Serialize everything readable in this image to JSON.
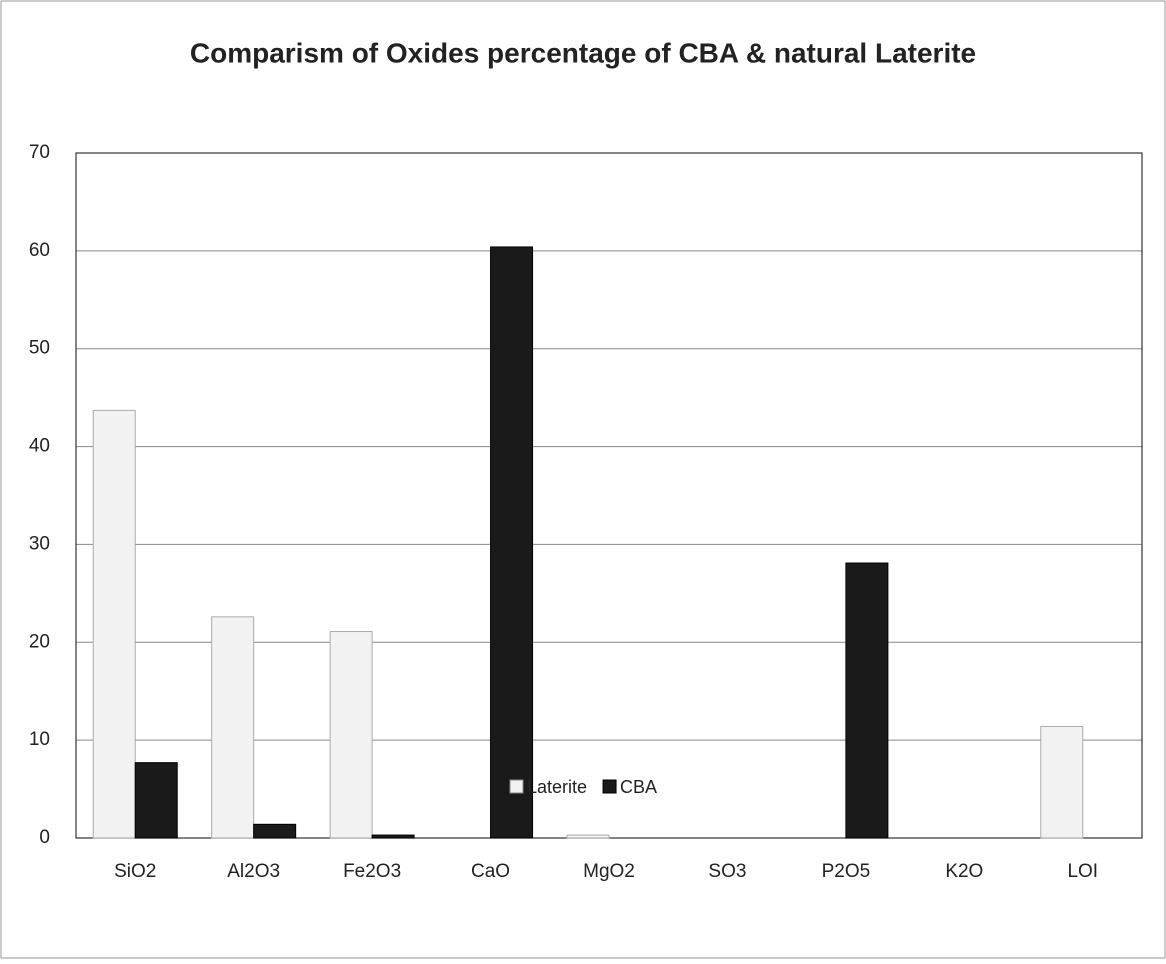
{
  "chart_data": {
    "type": "bar",
    "title": "Comparism of Oxides percentage of CBA & natural Laterite",
    "categories": [
      "SiO2",
      "Al2O3",
      "Fe2O3",
      "CaO",
      "MgO2",
      "SO3",
      "P2O5",
      "K2O",
      "LOI"
    ],
    "series": [
      {
        "name": "Laterite",
        "color": "#f2f2f2",
        "values": [
          43.7,
          22.6,
          21.1,
          0,
          0.3,
          0,
          0,
          0,
          11.4
        ]
      },
      {
        "name": "CBA",
        "color": "#1a1a1a",
        "values": [
          7.7,
          1.4,
          0.3,
          60.4,
          0,
          0,
          28.1,
          0,
          0
        ]
      }
    ],
    "ylim": [
      0,
      70
    ],
    "yticks": [
      0,
      10,
      20,
      30,
      40,
      50,
      60,
      70
    ],
    "grid": true,
    "legend": "bottom"
  }
}
